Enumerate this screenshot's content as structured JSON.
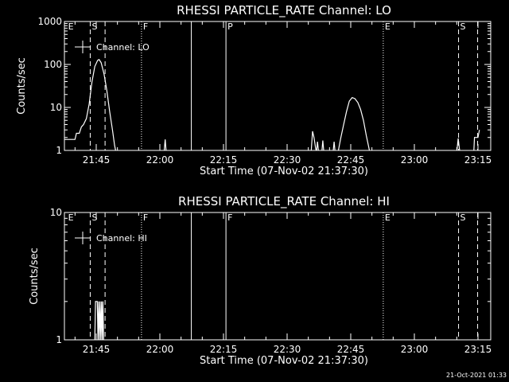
{
  "footer_stamp": "21-Oct-2021 01:33",
  "chart_data": [
    {
      "type": "line",
      "title": "RHESSI PARTICLE_RATE Channel: LO",
      "xlabel": "Start Time (07-Nov-02 21:37:30)",
      "ylabel": "Counts/sec",
      "y_scale": "log",
      "ylim": [
        1,
        1000
      ],
      "y_ticks": [
        {
          "v": 1,
          "label": "1"
        },
        {
          "v": 10,
          "label": "10"
        },
        {
          "v": 100,
          "label": "100"
        },
        {
          "v": 1000,
          "label": "1000"
        }
      ],
      "xlim": [
        "21:37:30",
        "23:18:00"
      ],
      "x_ticks": [
        {
          "t": "21:45",
          "label": "21:45"
        },
        {
          "t": "22:00",
          "label": "22:00"
        },
        {
          "t": "22:15",
          "label": "22:15"
        },
        {
          "t": "22:30",
          "label": "22:30"
        },
        {
          "t": "22:45",
          "label": "22:45"
        },
        {
          "t": "23:00",
          "label": "23:00"
        },
        {
          "t": "23:15",
          "label": "23:15"
        }
      ],
      "legend": {
        "entry": "Channel: LO",
        "placement": "top-left"
      },
      "markers": [
        {
          "time": "21:38:00",
          "label": "E",
          "style": "none"
        },
        {
          "time": "21:43:35",
          "label": "S",
          "style": "dashed"
        },
        {
          "time": "21:47:05",
          "label": "",
          "style": "dashed"
        },
        {
          "time": "21:55:40",
          "label": "F",
          "style": "dotted"
        },
        {
          "time": "22:07:25",
          "label": "",
          "style": "solid"
        },
        {
          "time": "22:15:35",
          "label": "P",
          "style": "solid"
        },
        {
          "time": "22:52:40",
          "label": "E",
          "style": "dotted"
        },
        {
          "time": "23:10:25",
          "label": "S",
          "style": "dashed"
        },
        {
          "time": "23:14:55",
          "label": "",
          "style": "dashed"
        }
      ],
      "series": [
        {
          "points": [
            [
              "21:37:30",
              1.8
            ],
            [
              "21:40:00",
              1.8
            ],
            [
              "21:40:20",
              2.5
            ],
            [
              "21:41:00",
              2.5
            ],
            [
              "21:41:30",
              3.5
            ],
            [
              "21:42:00",
              4.0
            ],
            [
              "21:42:40",
              5.5
            ],
            [
              "21:43:20",
              12
            ],
            [
              "21:44:00",
              40
            ],
            [
              "21:44:40",
              90
            ],
            [
              "21:45:20",
              125
            ],
            [
              "21:45:40",
              130
            ],
            [
              "21:46:10",
              110
            ],
            [
              "21:46:50",
              60
            ],
            [
              "21:47:30",
              25
            ],
            [
              "21:48:10",
              8
            ],
            [
              "21:48:50",
              3
            ],
            [
              "21:49:20",
              1.3
            ],
            [
              "21:49:40",
              0.9
            ]
          ]
        },
        {
          "points": [
            [
              "22:01:00",
              0.9
            ],
            [
              "22:01:15",
              1.8
            ],
            [
              "22:01:30",
              0.9
            ]
          ]
        },
        {
          "points": [
            [
              "22:35:40",
              0.9
            ],
            [
              "22:36:00",
              2.8
            ],
            [
              "22:36:20",
              2.0
            ],
            [
              "22:36:40",
              1.2
            ],
            [
              "22:36:55",
              0.9
            ],
            [
              "22:37:10",
              1.6
            ],
            [
              "22:37:25",
              0.9
            ],
            [
              "22:38:10",
              0.9
            ],
            [
              "22:38:25",
              1.7
            ],
            [
              "22:38:40",
              0.9
            ]
          ]
        },
        {
          "points": [
            [
              "22:40:50",
              0.9
            ],
            [
              "22:41:05",
              1.6
            ],
            [
              "22:41:20",
              0.9
            ],
            [
              "22:42:00",
              0.9
            ],
            [
              "22:42:40",
              2.0
            ],
            [
              "22:43:20",
              4.0
            ],
            [
              "22:44:00",
              8.0
            ],
            [
              "22:44:40",
              14
            ],
            [
              "22:45:20",
              17
            ],
            [
              "22:46:00",
              16
            ],
            [
              "22:46:40",
              13
            ],
            [
              "22:47:20",
              9
            ],
            [
              "22:48:00",
              5
            ],
            [
              "22:48:40",
              2.2
            ],
            [
              "22:49:10",
              1.3
            ],
            [
              "22:49:30",
              0.9
            ]
          ]
        },
        {
          "points": [
            [
              "23:10:00",
              0.9
            ],
            [
              "23:10:20",
              1.9
            ],
            [
              "23:10:40",
              1.0
            ],
            [
              "23:11:10",
              0.9
            ]
          ]
        },
        {
          "points": [
            [
              "23:14:00",
              0.9
            ],
            [
              "23:14:10",
              2.0
            ],
            [
              "23:15:00",
              2.0
            ],
            [
              "23:15:20",
              3.0
            ]
          ]
        }
      ]
    },
    {
      "type": "line",
      "title": "RHESSI PARTICLE_RATE Channel: HI",
      "xlabel": "Start Time (07-Nov-02 21:37:30)",
      "ylabel": "Counts/sec",
      "y_scale": "log",
      "ylim": [
        1,
        10
      ],
      "y_ticks": [
        {
          "v": 1,
          "label": "1"
        },
        {
          "v": 10,
          "label": "10"
        }
      ],
      "xlim": [
        "21:37:30",
        "23:18:00"
      ],
      "x_ticks": [
        {
          "t": "21:45",
          "label": "21:45"
        },
        {
          "t": "22:00",
          "label": "22:00"
        },
        {
          "t": "22:15",
          "label": "22:15"
        },
        {
          "t": "22:30",
          "label": "22:30"
        },
        {
          "t": "22:45",
          "label": "22:45"
        },
        {
          "t": "23:00",
          "label": "23:00"
        },
        {
          "t": "23:15",
          "label": "23:15"
        }
      ],
      "legend": {
        "entry": "Channel: HI",
        "placement": "top-left"
      },
      "markers": [
        {
          "time": "21:38:00",
          "label": "E",
          "style": "none"
        },
        {
          "time": "21:43:35",
          "label": "S",
          "style": "dashed"
        },
        {
          "time": "21:47:05",
          "label": "",
          "style": "dashed"
        },
        {
          "time": "21:55:40",
          "label": "F",
          "style": "dotted"
        },
        {
          "time": "22:07:25",
          "label": "",
          "style": "solid"
        },
        {
          "time": "22:15:35",
          "label": "F",
          "style": "solid"
        },
        {
          "time": "22:52:40",
          "label": "E",
          "style": "dotted"
        },
        {
          "time": "23:10:25",
          "label": "S",
          "style": "dashed"
        },
        {
          "time": "23:14:55",
          "label": "",
          "style": "dashed"
        }
      ],
      "series": [
        {
          "points": [
            [
              "21:44:40",
              1.0
            ],
            [
              "21:44:50",
              2.0
            ],
            [
              "21:45:15",
              2.0
            ],
            [
              "21:45:25",
              1.0
            ],
            [
              "21:45:35",
              2.0
            ],
            [
              "21:45:45",
              1.0
            ],
            [
              "21:45:55",
              2.0
            ],
            [
              "21:46:05",
              1.0
            ],
            [
              "21:46:15",
              2.0
            ],
            [
              "21:46:25",
              1.0
            ],
            [
              "21:46:35",
              2.0
            ],
            [
              "21:46:45",
              1.0
            ]
          ]
        }
      ]
    }
  ]
}
